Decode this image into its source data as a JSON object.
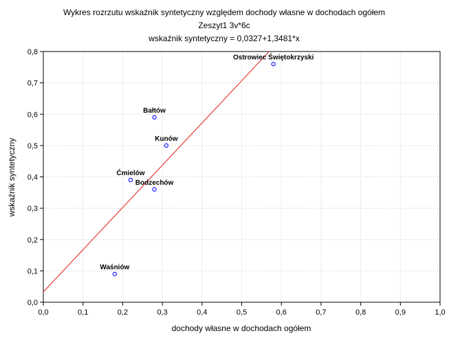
{
  "chart_data": {
    "type": "scatter",
    "title": "Wykres rozrzutu   wskaźnik syntetyczny względem dochody własne w dochodach ogółem",
    "subtitle": "Zeszyt1 3v*6c",
    "equation": "wskaźnik syntetyczny = 0,0327+1,3481*x",
    "xlabel": "dochody własne w dochodach ogółem",
    "ylabel": "wskaźnik syntetyczny",
    "xlim": [
      0,
      1
    ],
    "ylim": [
      0,
      0.8
    ],
    "x_ticks": [
      {
        "value": 0.0,
        "label": "0,0"
      },
      {
        "value": 0.1,
        "label": "0,1"
      },
      {
        "value": 0.2,
        "label": "0,2"
      },
      {
        "value": 0.3,
        "label": "0,3"
      },
      {
        "value": 0.4,
        "label": "0,4"
      },
      {
        "value": 0.5,
        "label": "0,5"
      },
      {
        "value": 0.6,
        "label": "0,6"
      },
      {
        "value": 0.7,
        "label": "0,7"
      },
      {
        "value": 0.8,
        "label": "0,8"
      },
      {
        "value": 0.9,
        "label": "0,9"
      },
      {
        "value": 1.0,
        "label": "1,0"
      }
    ],
    "y_ticks": [
      {
        "value": 0.0,
        "label": "0,0"
      },
      {
        "value": 0.1,
        "label": "0,1"
      },
      {
        "value": 0.2,
        "label": "0,2"
      },
      {
        "value": 0.3,
        "label": "0,3"
      },
      {
        "value": 0.4,
        "label": "0,4"
      },
      {
        "value": 0.5,
        "label": "0,5"
      },
      {
        "value": 0.6,
        "label": "0,6"
      },
      {
        "value": 0.7,
        "label": "0,7"
      },
      {
        "value": 0.8,
        "label": "0,8"
      }
    ],
    "grid": true,
    "points": [
      {
        "label": "Ostrowiec Świętokrzyski",
        "x": 0.58,
        "y": 0.76
      },
      {
        "label": "Bałtów",
        "x": 0.28,
        "y": 0.59
      },
      {
        "label": "Kunów",
        "x": 0.31,
        "y": 0.5
      },
      {
        "label": "Ćmielów",
        "x": 0.22,
        "y": 0.39
      },
      {
        "label": "Bodzechów",
        "x": 0.28,
        "y": 0.36
      },
      {
        "label": "Waśniów",
        "x": 0.18,
        "y": 0.09
      }
    ],
    "regression": {
      "intercept": 0.0327,
      "slope": 1.3481
    },
    "colors": {
      "points": "#1a1aff",
      "regression": "#e83b3b",
      "axes": "#000000",
      "grid": "#c8c8c8"
    }
  }
}
